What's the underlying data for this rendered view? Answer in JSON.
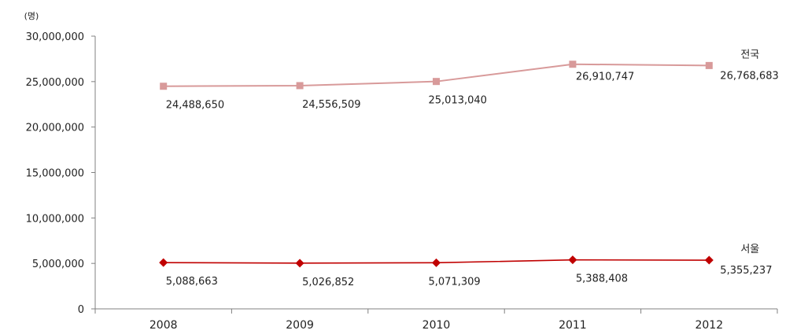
{
  "chart_data": {
    "type": "line",
    "unit_label": "(명)",
    "categories": [
      "2008",
      "2009",
      "2010",
      "2011",
      "2012"
    ],
    "ylim": [
      0,
      30000000
    ],
    "yticks": [
      0,
      5000000,
      10000000,
      15000000,
      20000000,
      25000000,
      30000000
    ],
    "ytick_labels": [
      "0",
      "5,000,000",
      "10,000,000",
      "15,000,000",
      "20,000,000",
      "25,000,000",
      "30,000,000"
    ],
    "grid": false,
    "series": [
      {
        "name": "전국",
        "color": "#d89a9a",
        "marker": "square",
        "values": [
          24488650,
          24556509,
          25013040,
          26910747,
          26768683
        ],
        "value_labels": [
          "24,488,650",
          "24,556,509",
          "25,013,040",
          "26,910,747",
          "26,768,683"
        ]
      },
      {
        "name": "서울",
        "color": "#c00000",
        "marker": "diamond",
        "values": [
          5088663,
          5026852,
          5071309,
          5388408,
          5355237
        ],
        "value_labels": [
          "5,088,663",
          "5,026,852",
          "5,071,309",
          "5,388,408",
          "5,355,237"
        ]
      }
    ]
  }
}
